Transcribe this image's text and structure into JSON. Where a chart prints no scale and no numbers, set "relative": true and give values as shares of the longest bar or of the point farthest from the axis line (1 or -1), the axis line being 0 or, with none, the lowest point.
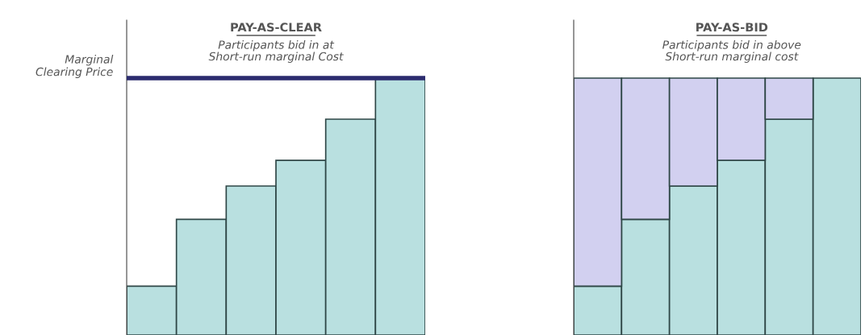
{
  "chart_data": [
    {
      "type": "bar",
      "title": "PAY-AS-CLEAR",
      "subtitle": "Participants bid in at\nShort-run marginal Cost",
      "relative": true,
      "categories": [
        null,
        null,
        null,
        null,
        null,
        null
      ],
      "series": [
        {
          "color": "#b9e0e0",
          "values": [
            0.19,
            0.45,
            0.58,
            0.68,
            0.84,
            1.0
          ]
        }
      ],
      "ref_lines": [
        {
          "axis": "y",
          "value": 1.0,
          "label": "Marginal\nClearing Price",
          "color": "#2b2b6e"
        }
      ]
    },
    {
      "type": "bar",
      "title": "PAY-AS-BID",
      "subtitle": "Participants bid in above\nShort-run marginal cost",
      "relative": true,
      "stacked": true,
      "categories": [
        null,
        null,
        null,
        null,
        null,
        null
      ],
      "series": [
        {
          "color": "#b9e0e0",
          "values": [
            0.19,
            0.45,
            0.58,
            0.68,
            0.84,
            1.0
          ]
        },
        {
          "color": "#d2d0f0",
          "values": [
            0.81,
            0.55,
            0.42,
            0.32,
            0.16,
            null
          ]
        }
      ]
    }
  ]
}
